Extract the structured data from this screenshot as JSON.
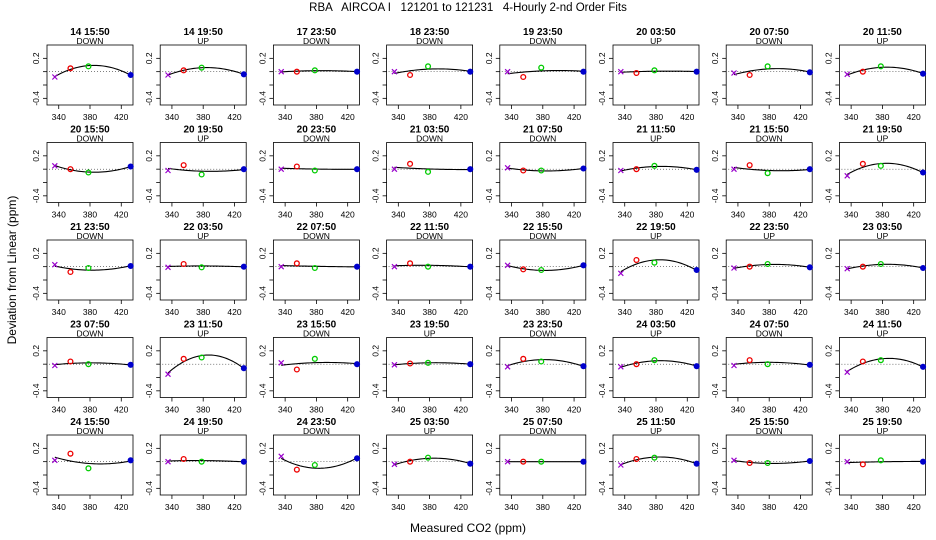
{
  "figure": {
    "title": "RBA   AIRCOA I   121201 to 121231   4-Hourly 2-nd Order Fits",
    "xlabel": "Measured CO2 (ppm)",
    "ylabel": "Deviation from Linear (ppm)"
  },
  "chart_data": {
    "type": "scatter",
    "layout": "grid 5 rows x 8 columns",
    "x_ticks": [
      340,
      380,
      420
    ],
    "y_ticks": [
      -0.4,
      -0.2,
      0.0,
      0.2
    ],
    "y_tick_labels": [
      "-0.4",
      "-0.2",
      "0.0",
      "0.2"
    ],
    "y_tick_labels_shown": [
      "-0.4",
      "",
      "",
      "0.2"
    ],
    "xlim": [
      325,
      435
    ],
    "ylim": [
      -0.5,
      0.4
    ],
    "standard_x": [
      335,
      355,
      378,
      432
    ],
    "standard_colors": [
      "#9900cc",
      "#ee0000",
      "#00cc00",
      "#0000cc"
    ],
    "panels": [
      {
        "title": "14 15:50",
        "direction": "DOWN",
        "y": [
          -0.08,
          0.05,
          0.08,
          -0.05
        ]
      },
      {
        "title": "14 19:50",
        "direction": "UP",
        "y": [
          -0.05,
          0.02,
          0.06,
          -0.04
        ]
      },
      {
        "title": "17 23:50",
        "direction": "DOWN",
        "y": [
          0.0,
          0.0,
          0.02,
          0.0
        ]
      },
      {
        "title": "18 23:50",
        "direction": "DOWN",
        "y": [
          0.0,
          -0.05,
          0.08,
          0.0
        ]
      },
      {
        "title": "19 23:50",
        "direction": "DOWN",
        "y": [
          0.0,
          -0.08,
          0.06,
          0.0
        ]
      },
      {
        "title": "20 03:50",
        "direction": "UP",
        "y": [
          0.0,
          -0.02,
          0.02,
          0.0
        ]
      },
      {
        "title": "20 07:50",
        "direction": "DOWN",
        "y": [
          -0.02,
          -0.05,
          0.08,
          -0.01
        ]
      },
      {
        "title": "20 11:50",
        "direction": "UP",
        "y": [
          -0.04,
          0.0,
          0.08,
          -0.03
        ]
      },
      {
        "title": "20 15:50",
        "direction": "DOWN",
        "y": [
          0.05,
          0.0,
          -0.05,
          0.04
        ]
      },
      {
        "title": "20 19:50",
        "direction": "UP",
        "y": [
          -0.02,
          0.06,
          -0.08,
          0.0
        ]
      },
      {
        "title": "20 23:50",
        "direction": "DOWN",
        "y": [
          0.0,
          0.04,
          -0.02,
          0.0
        ]
      },
      {
        "title": "21 03:50",
        "direction": "DOWN",
        "y": [
          0.0,
          0.08,
          -0.04,
          0.0
        ]
      },
      {
        "title": "21 07:50",
        "direction": "DOWN",
        "y": [
          0.02,
          -0.02,
          -0.02,
          0.01
        ]
      },
      {
        "title": "21 11:50",
        "direction": "UP",
        "y": [
          -0.02,
          0.0,
          0.05,
          -0.01
        ]
      },
      {
        "title": "21 15:50",
        "direction": "DOWN",
        "y": [
          0.0,
          0.06,
          -0.06,
          0.0
        ]
      },
      {
        "title": "21 19:50",
        "direction": "UP",
        "y": [
          -0.1,
          0.08,
          0.05,
          -0.05
        ]
      },
      {
        "title": "21 23:50",
        "direction": "DOWN",
        "y": [
          0.03,
          -0.08,
          -0.02,
          0.01
        ]
      },
      {
        "title": "22 03:50",
        "direction": "UP",
        "y": [
          -0.01,
          0.04,
          -0.01,
          0.0
        ]
      },
      {
        "title": "22 07:50",
        "direction": "DOWN",
        "y": [
          0.0,
          0.05,
          -0.02,
          0.0
        ]
      },
      {
        "title": "22 11:50",
        "direction": "DOWN",
        "y": [
          0.0,
          0.05,
          0.0,
          0.0
        ]
      },
      {
        "title": "22 15:50",
        "direction": "DOWN",
        "y": [
          0.02,
          -0.04,
          -0.05,
          0.02
        ]
      },
      {
        "title": "22 19:50",
        "direction": "UP",
        "y": [
          -0.1,
          0.1,
          0.06,
          -0.05
        ]
      },
      {
        "title": "22 23:50",
        "direction": "UP",
        "y": [
          -0.02,
          0.0,
          0.04,
          -0.01
        ]
      },
      {
        "title": "23 03:50",
        "direction": "UP",
        "y": [
          -0.03,
          0.0,
          0.04,
          -0.02
        ]
      },
      {
        "title": "23 07:50",
        "direction": "DOWN",
        "y": [
          -0.02,
          0.04,
          0.0,
          -0.01
        ]
      },
      {
        "title": "23 11:50",
        "direction": "UP",
        "y": [
          -0.15,
          0.08,
          0.1,
          -0.06
        ]
      },
      {
        "title": "23 15:50",
        "direction": "DOWN",
        "y": [
          0.02,
          -0.08,
          0.08,
          0.0
        ]
      },
      {
        "title": "23 19:50",
        "direction": "UP",
        "y": [
          -0.01,
          0.01,
          0.02,
          0.0
        ]
      },
      {
        "title": "23 23:50",
        "direction": "DOWN",
        "y": [
          -0.04,
          0.08,
          0.04,
          -0.03
        ]
      },
      {
        "title": "24 03:50",
        "direction": "UP",
        "y": [
          -0.04,
          0.0,
          0.06,
          -0.03
        ]
      },
      {
        "title": "24 07:50",
        "direction": "DOWN",
        "y": [
          -0.02,
          0.06,
          0.0,
          -0.01
        ]
      },
      {
        "title": "24 11:50",
        "direction": "UP",
        "y": [
          -0.12,
          0.04,
          0.06,
          -0.04
        ]
      },
      {
        "title": "24 15:50",
        "direction": "DOWN",
        "y": [
          0.02,
          0.12,
          -0.1,
          0.02
        ]
      },
      {
        "title": "24 19:50",
        "direction": "UP",
        "y": [
          0.0,
          0.04,
          0.0,
          0.0
        ]
      },
      {
        "title": "24 23:50",
        "direction": "DOWN",
        "y": [
          0.08,
          -0.12,
          -0.05,
          0.05
        ]
      },
      {
        "title": "25 03:50",
        "direction": "UP",
        "y": [
          -0.04,
          0.0,
          0.06,
          -0.03
        ]
      },
      {
        "title": "25 07:50",
        "direction": "DOWN",
        "y": [
          0.0,
          0.0,
          0.0,
          0.0
        ]
      },
      {
        "title": "25 11:50",
        "direction": "UP",
        "y": [
          -0.05,
          0.04,
          0.06,
          -0.03
        ]
      },
      {
        "title": "25 15:50",
        "direction": "DOWN",
        "y": [
          0.02,
          -0.02,
          -0.02,
          0.01
        ]
      },
      {
        "title": "25 19:50",
        "direction": "UP",
        "y": [
          0.0,
          -0.04,
          0.02,
          0.0
        ]
      }
    ]
  }
}
